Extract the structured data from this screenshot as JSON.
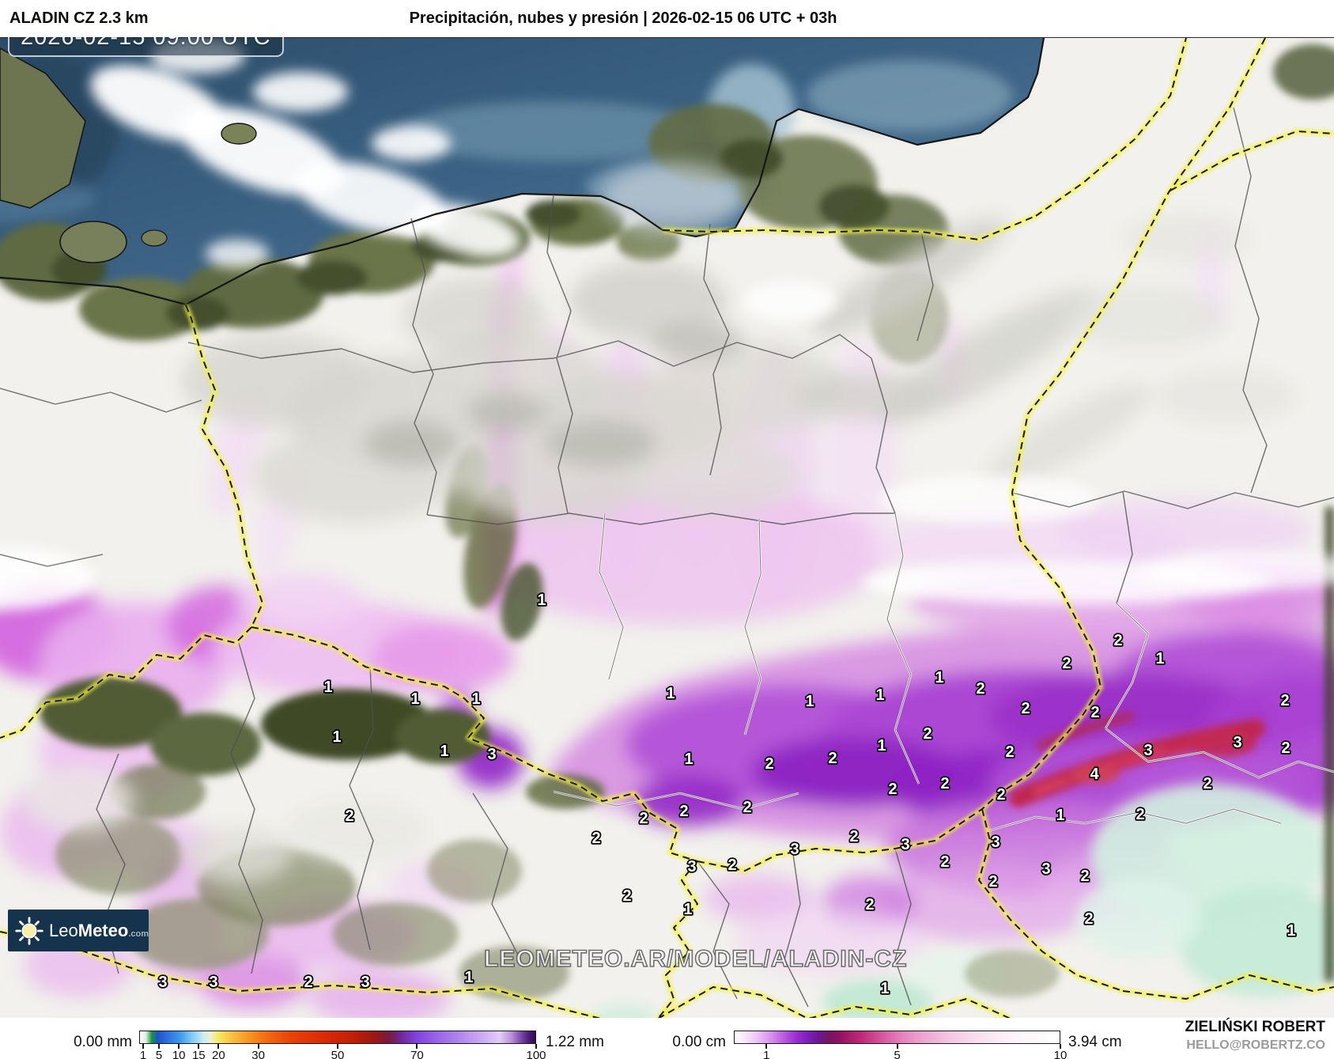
{
  "header": {
    "model": "ALADIN CZ 2.3 km",
    "title": "Precipitación, nubes y presión | 2026-02-15 06 UTC + 03h"
  },
  "map": {
    "timestamp": "2026-02-15 09:00 UTC",
    "watermark": "LEOMETEO.AR/MODEL/ALADIN-CZ",
    "values_unit": "cm",
    "values": [
      [
        1,
        685,
        757
      ],
      [
        1,
        415,
        867
      ],
      [
        1,
        525,
        882
      ],
      [
        1,
        602,
        882
      ],
      [
        1,
        426,
        930
      ],
      [
        1,
        562,
        948
      ],
      [
        3,
        622,
        952
      ],
      [
        2,
        442,
        1030
      ],
      [
        1,
        848,
        875
      ],
      [
        1,
        1024,
        885
      ],
      [
        1,
        1113,
        877
      ],
      [
        1,
        1188,
        855
      ],
      [
        2,
        1240,
        869
      ],
      [
        2,
        1173,
        926
      ],
      [
        2,
        1414,
        808
      ],
      [
        1,
        1467,
        831
      ],
      [
        2,
        1349,
        837
      ],
      [
        2,
        1297,
        894
      ],
      [
        2,
        1385,
        899
      ],
      [
        2,
        1625,
        884
      ],
      [
        2,
        1277,
        949
      ],
      [
        3,
        1452,
        947
      ],
      [
        3,
        1565,
        937
      ],
      [
        2,
        1626,
        944
      ],
      [
        4,
        1384,
        977
      ],
      [
        1,
        871,
        958
      ],
      [
        2,
        973,
        964
      ],
      [
        2,
        1053,
        957
      ],
      [
        1,
        1115,
        941
      ],
      [
        2,
        1129,
        996
      ],
      [
        2,
        865,
        1024
      ],
      [
        2,
        945,
        1019
      ],
      [
        2,
        814,
        1033
      ],
      [
        2,
        754,
        1058
      ],
      [
        2,
        1080,
        1056
      ],
      [
        3,
        1005,
        1072
      ],
      [
        3,
        1145,
        1066
      ],
      [
        3,
        875,
        1094
      ],
      [
        2,
        926,
        1092
      ],
      [
        2,
        793,
        1131
      ],
      [
        1,
        870,
        1148
      ],
      [
        2,
        1100,
        1142
      ],
      [
        2,
        1195,
        989
      ],
      [
        2,
        1266,
        1003
      ],
      [
        2,
        1527,
        989
      ],
      [
        1,
        1341,
        1029
      ],
      [
        2,
        1442,
        1028
      ],
      [
        3,
        1259,
        1063
      ],
      [
        2,
        1195,
        1088
      ],
      [
        3,
        1323,
        1097
      ],
      [
        2,
        1372,
        1106
      ],
      [
        2,
        1256,
        1113
      ],
      [
        2,
        1377,
        1160
      ],
      [
        1,
        1633,
        1175
      ],
      [
        3,
        206,
        1240
      ],
      [
        3,
        270,
        1240
      ],
      [
        2,
        390,
        1240
      ],
      [
        3,
        462,
        1240
      ],
      [
        1,
        593,
        1234
      ],
      [
        1,
        1119,
        1248
      ]
    ]
  },
  "logo": {
    "leo": "Leo",
    "meteo": "Meteo",
    "tld": ".com"
  },
  "legend": {
    "precip": {
      "min_label": "0.00 mm",
      "max_label": "1.22 mm",
      "ticks": [
        1,
        5,
        10,
        15,
        20,
        30,
        50,
        70,
        100
      ],
      "scale_max": 100,
      "gradient": [
        [
          0,
          "#ffffff"
        ],
        [
          1.5,
          "#dff0df"
        ],
        [
          3,
          "#17923d"
        ],
        [
          4.5,
          "#1c54c8"
        ],
        [
          7,
          "#2f6fe3"
        ],
        [
          10,
          "#3b97f0"
        ],
        [
          13,
          "#7cc8f2"
        ],
        [
          16,
          "#c8ecf4"
        ],
        [
          18,
          "#eef2c8"
        ],
        [
          20,
          "#f6e75c"
        ],
        [
          23,
          "#f8c440"
        ],
        [
          27,
          "#f79a26"
        ],
        [
          32,
          "#f36b12"
        ],
        [
          38,
          "#ea4309"
        ],
        [
          46,
          "#dd2a06"
        ],
        [
          54,
          "#c11f05"
        ],
        [
          59,
          "#9c1810"
        ],
        [
          63,
          "#761b3f"
        ],
        [
          66,
          "#6f2899"
        ],
        [
          70,
          "#8142dd"
        ],
        [
          75,
          "#9764e8"
        ],
        [
          81,
          "#b187ee"
        ],
        [
          87,
          "#cfadf4"
        ],
        [
          91,
          "#e2cdf8"
        ],
        [
          94,
          "#b98fd6"
        ],
        [
          96.5,
          "#7a44a8"
        ],
        [
          98.5,
          "#4a1a75"
        ],
        [
          100,
          "#31094e"
        ]
      ]
    },
    "snow": {
      "min_label": "0.00 cm",
      "max_label": "3.94 cm",
      "ticks": [
        1,
        5,
        10
      ],
      "scale_max": 10,
      "gradient": [
        [
          0,
          "#ffffff"
        ],
        [
          3,
          "#f7e8fb"
        ],
        [
          7,
          "#ecc3f5"
        ],
        [
          11,
          "#d893ec"
        ],
        [
          15,
          "#bc5ce0"
        ],
        [
          19,
          "#9a2dd2"
        ],
        [
          23,
          "#7d1cb8"
        ],
        [
          26,
          "#6d1691"
        ],
        [
          29,
          "#761563"
        ],
        [
          32,
          "#8f1260"
        ],
        [
          35,
          "#a81a68"
        ],
        [
          39,
          "#bf2a78"
        ],
        [
          43,
          "#cf4490"
        ],
        [
          47,
          "#dc63a8"
        ],
        [
          52,
          "#e685bd"
        ],
        [
          58,
          "#eda5cf"
        ],
        [
          66,
          "#f4c6e2"
        ],
        [
          75,
          "#f9e0ee"
        ],
        [
          85,
          "#fdf2f8"
        ],
        [
          100,
          "#ffffff"
        ]
      ]
    }
  },
  "credits": {
    "author": "ZIELIŃSKI ROBERT",
    "email": "HELLO@ROBERTZ.CO"
  },
  "palette": {
    "sea": "#3c6385",
    "sea_dark": "#24435e",
    "land": "#f2f1ed",
    "terrain_olive": "#57613a",
    "cloud_gray": "#d6d5cf",
    "precip_light": "#f2d4f4",
    "precip_mid": "#c369da",
    "precip_deep": "#8f25c4",
    "heavy_band": "#bf2850",
    "mixed_teal": "#cdeedd",
    "border_country": "#f5f23c",
    "border_region": "#4f4f4f",
    "timestamp_bg": "#1c2e40",
    "logo_bg": "#15334d"
  }
}
